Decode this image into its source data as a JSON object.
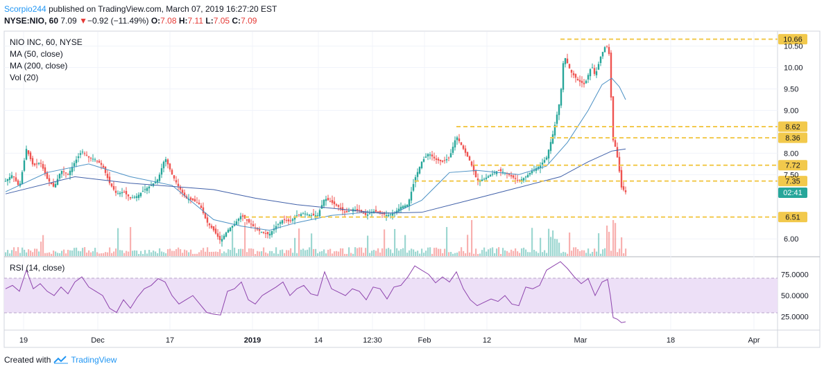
{
  "header": {
    "user": "Scorpio244",
    "published_text": "published on TradingView.com, March 07, 2019 16:27:20 EST",
    "symbol": "NYSE:NIO, 60",
    "last": "7.09",
    "change": "−0.92 (−11.49%)",
    "o_label": "O:",
    "o_value": "7.08",
    "h_label": "H:",
    "h_value": "7.11",
    "l_label": "L:",
    "l_value": "7.05",
    "c_label": "C:",
    "c_value": "7.09"
  },
  "legend": {
    "title": "NIO INC, 60, NYSE",
    "ma50": "MA (50, close)",
    "ma200": "MA (200, close)",
    "vol": "Vol (20)",
    "rsi": "RSI (14, close)"
  },
  "countdown": "02:41",
  "footer": {
    "created_with": "Created with",
    "brand": "TradingView"
  },
  "colors": {
    "up": "#26a69a",
    "down": "#ef5350",
    "ma50": "#4a90c4",
    "ma200": "#3f5fa8",
    "rsi": "#8e44ad",
    "rsi_band": "#e1bee7",
    "level": "#f2c94c",
    "last_tag": "#26a69a"
  },
  "chart_data": {
    "type": "line",
    "price_axis": {
      "range": [
        5.6,
        10.8
      ],
      "ticks": [
        "6.00",
        "7.50",
        "8.00",
        "9.00",
        "9.50",
        "10.00",
        "10.50"
      ]
    },
    "rsi_axis": {
      "range": [
        10,
        95
      ],
      "ticks": [
        "25.0000",
        "50.0000",
        "75.0000"
      ],
      "band": [
        30,
        70
      ]
    },
    "x_ticks": [
      "19",
      "Dec",
      "17",
      "2019",
      "14",
      "12:30",
      "Feb",
      "12",
      "Mar",
      "18",
      "Apr"
    ],
    "horizontal_levels": [
      "10.66",
      "8.62",
      "8.36",
      "7.72",
      "7.35",
      "6.51"
    ],
    "last_price": 7.09,
    "price_path": [
      [
        0,
        7.35
      ],
      [
        10,
        7.5
      ],
      [
        20,
        7.2
      ],
      [
        30,
        8.1
      ],
      [
        40,
        7.7
      ],
      [
        50,
        7.8
      ],
      [
        60,
        7.4
      ],
      [
        70,
        7.2
      ],
      [
        80,
        7.6
      ],
      [
        90,
        7.5
      ],
      [
        100,
        7.8
      ],
      [
        110,
        8.05
      ],
      [
        120,
        7.9
      ],
      [
        130,
        7.85
      ],
      [
        140,
        7.7
      ],
      [
        150,
        7.3
      ],
      [
        160,
        7.05
      ],
      [
        170,
        7.1
      ],
      [
        180,
        6.95
      ],
      [
        190,
        7.0
      ],
      [
        200,
        7.15
      ],
      [
        210,
        7.25
      ],
      [
        220,
        7.4
      ],
      [
        230,
        7.9
      ],
      [
        240,
        7.5
      ],
      [
        250,
        7.2
      ],
      [
        260,
        6.95
      ],
      [
        270,
        6.9
      ],
      [
        280,
        6.8
      ],
      [
        290,
        6.4
      ],
      [
        300,
        6.2
      ],
      [
        310,
        5.95
      ],
      [
        320,
        6.2
      ],
      [
        330,
        6.35
      ],
      [
        340,
        6.55
      ],
      [
        350,
        6.4
      ],
      [
        360,
        6.25
      ],
      [
        370,
        6.15
      ],
      [
        380,
        6.1
      ],
      [
        390,
        6.3
      ],
      [
        400,
        6.45
      ],
      [
        410,
        6.4
      ],
      [
        420,
        6.55
      ],
      [
        430,
        6.6
      ],
      [
        440,
        6.55
      ],
      [
        450,
        6.55
      ],
      [
        460,
        6.95
      ],
      [
        470,
        6.85
      ],
      [
        480,
        6.75
      ],
      [
        490,
        6.6
      ],
      [
        500,
        6.7
      ],
      [
        510,
        6.65
      ],
      [
        520,
        6.55
      ],
      [
        530,
        6.65
      ],
      [
        540,
        6.6
      ],
      [
        550,
        6.55
      ],
      [
        560,
        6.6
      ],
      [
        570,
        6.75
      ],
      [
        580,
        6.8
      ],
      [
        590,
        7.4
      ],
      [
        600,
        7.8
      ],
      [
        610,
        8.0
      ],
      [
        620,
        7.85
      ],
      [
        630,
        7.8
      ],
      [
        640,
        7.9
      ],
      [
        650,
        8.4
      ],
      [
        660,
        8.1
      ],
      [
        670,
        7.8
      ],
      [
        680,
        7.35
      ],
      [
        690,
        7.4
      ],
      [
        700,
        7.5
      ],
      [
        710,
        7.6
      ],
      [
        720,
        7.55
      ],
      [
        730,
        7.45
      ],
      [
        740,
        7.35
      ],
      [
        750,
        7.45
      ],
      [
        760,
        7.6
      ],
      [
        770,
        7.7
      ],
      [
        780,
        7.9
      ],
      [
        790,
        8.5
      ],
      [
        800,
        9.3
      ],
      [
        805,
        10.3
      ],
      [
        815,
        9.9
      ],
      [
        825,
        9.7
      ],
      [
        835,
        9.6
      ],
      [
        845,
        10.05
      ],
      [
        850,
        9.8
      ],
      [
        858,
        10.25
      ],
      [
        866,
        10.55
      ],
      [
        872,
        10.2
      ],
      [
        874,
        8.4
      ],
      [
        880,
        8.1
      ],
      [
        884,
        7.7
      ],
      [
        888,
        7.2
      ],
      [
        894,
        7.09
      ]
    ],
    "ma50_path": [
      [
        0,
        7.1
      ],
      [
        60,
        7.55
      ],
      [
        120,
        7.75
      ],
      [
        180,
        7.45
      ],
      [
        240,
        7.25
      ],
      [
        300,
        6.45
      ],
      [
        340,
        6.3
      ],
      [
        380,
        6.2
      ],
      [
        420,
        6.38
      ],
      [
        470,
        6.55
      ],
      [
        520,
        6.62
      ],
      [
        560,
        6.6
      ],
      [
        600,
        6.9
      ],
      [
        640,
        7.55
      ],
      [
        680,
        7.6
      ],
      [
        740,
        7.5
      ],
      [
        780,
        7.7
      ],
      [
        810,
        8.25
      ],
      [
        840,
        9.0
      ],
      [
        860,
        9.6
      ],
      [
        874,
        9.75
      ],
      [
        885,
        9.55
      ],
      [
        894,
        9.25
      ]
    ],
    "ma200_path": [
      [
        0,
        7.05
      ],
      [
        100,
        7.45
      ],
      [
        180,
        7.3
      ],
      [
        260,
        7.2
      ],
      [
        300,
        7.15
      ],
      [
        360,
        6.95
      ],
      [
        420,
        6.8
      ],
      [
        480,
        6.7
      ],
      [
        540,
        6.6
      ],
      [
        600,
        6.62
      ],
      [
        680,
        6.95
      ],
      [
        740,
        7.2
      ],
      [
        800,
        7.45
      ],
      [
        840,
        7.8
      ],
      [
        874,
        8.05
      ],
      [
        894,
        8.1
      ]
    ],
    "rsi_path": [
      [
        0,
        58
      ],
      [
        10,
        62
      ],
      [
        20,
        55
      ],
      [
        30,
        80
      ],
      [
        40,
        58
      ],
      [
        50,
        64
      ],
      [
        60,
        55
      ],
      [
        70,
        50
      ],
      [
        80,
        60
      ],
      [
        90,
        52
      ],
      [
        100,
        66
      ],
      [
        110,
        72
      ],
      [
        120,
        60
      ],
      [
        130,
        55
      ],
      [
        140,
        50
      ],
      [
        150,
        35
      ],
      [
        160,
        30
      ],
      [
        170,
        45
      ],
      [
        180,
        35
      ],
      [
        190,
        48
      ],
      [
        200,
        58
      ],
      [
        210,
        62
      ],
      [
        220,
        70
      ],
      [
        230,
        66
      ],
      [
        240,
        50
      ],
      [
        250,
        40
      ],
      [
        260,
        45
      ],
      [
        270,
        50
      ],
      [
        280,
        40
      ],
      [
        290,
        30
      ],
      [
        300,
        28
      ],
      [
        310,
        27
      ],
      [
        320,
        55
      ],
      [
        330,
        58
      ],
      [
        340,
        66
      ],
      [
        350,
        45
      ],
      [
        360,
        40
      ],
      [
        370,
        50
      ],
      [
        380,
        55
      ],
      [
        390,
        60
      ],
      [
        400,
        66
      ],
      [
        410,
        50
      ],
      [
        420,
        58
      ],
      [
        430,
        62
      ],
      [
        440,
        52
      ],
      [
        450,
        50
      ],
      [
        460,
        78
      ],
      [
        470,
        58
      ],
      [
        480,
        54
      ],
      [
        490,
        50
      ],
      [
        500,
        58
      ],
      [
        510,
        55
      ],
      [
        520,
        45
      ],
      [
        530,
        60
      ],
      [
        540,
        58
      ],
      [
        550,
        46
      ],
      [
        560,
        60
      ],
      [
        570,
        62
      ],
      [
        580,
        72
      ],
      [
        590,
        85
      ],
      [
        600,
        80
      ],
      [
        610,
        75
      ],
      [
        620,
        65
      ],
      [
        630,
        72
      ],
      [
        640,
        66
      ],
      [
        650,
        78
      ],
      [
        660,
        58
      ],
      [
        670,
        45
      ],
      [
        680,
        38
      ],
      [
        690,
        42
      ],
      [
        700,
        46
      ],
      [
        710,
        43
      ],
      [
        720,
        50
      ],
      [
        730,
        40
      ],
      [
        740,
        38
      ],
      [
        750,
        60
      ],
      [
        760,
        58
      ],
      [
        770,
        62
      ],
      [
        780,
        80
      ],
      [
        790,
        85
      ],
      [
        800,
        90
      ],
      [
        810,
        82
      ],
      [
        820,
        72
      ],
      [
        830,
        64
      ],
      [
        840,
        70
      ],
      [
        850,
        50
      ],
      [
        860,
        66
      ],
      [
        868,
        69
      ],
      [
        872,
        50
      ],
      [
        876,
        24
      ],
      [
        882,
        22
      ],
      [
        888,
        18
      ],
      [
        894,
        19
      ]
    ]
  }
}
